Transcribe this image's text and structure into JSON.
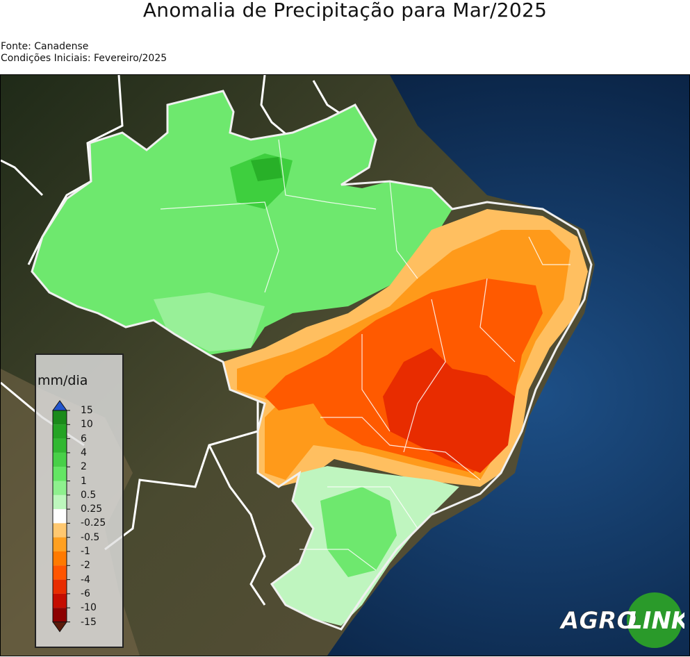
{
  "title": "Anomalia de Precipitação para Mar/2025",
  "source": "Fonte: Canadense",
  "initial_conditions": "Condições Iniciais: Fevereiro/2025",
  "legend": {
    "unit": "mm/dia",
    "ticks": [
      "15",
      "10",
      "6",
      "4",
      "2",
      "1",
      "0.5",
      "0.25",
      "-0.25",
      "-0.5",
      "-1",
      "-2",
      "-4",
      "-6",
      "-10",
      "-15"
    ],
    "colors": [
      "#1a8a1a",
      "#24a324",
      "#31b831",
      "#48d048",
      "#64e664",
      "#8ef08e",
      "#bdf7bd",
      "#ffffff",
      "#ffc870",
      "#ffa020",
      "#ff7a00",
      "#ff5500",
      "#e82c00",
      "#c40c00",
      "#8c0000"
    ],
    "top_arrow_color": "#2255cc",
    "bottom_arrow_color": "#5a1a0a"
  },
  "logo": {
    "text_left": "AGRO",
    "text_right": "LINK",
    "circle_color": "#2a9a2a"
  },
  "palette": {
    "ocean": "#0c2a52",
    "land": "#3b4a2c",
    "border": "#ffffff"
  }
}
